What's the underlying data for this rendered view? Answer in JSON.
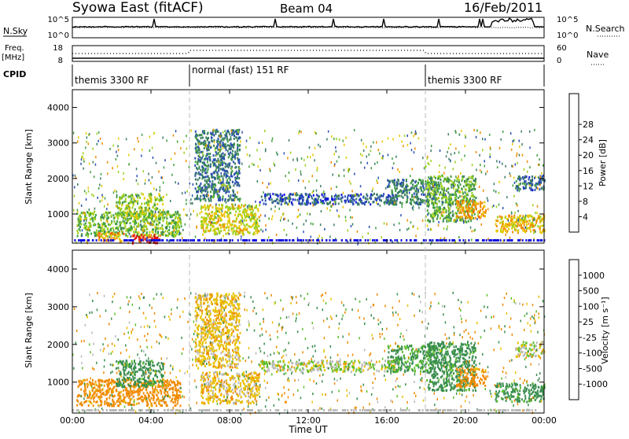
{
  "header": {
    "station": "Syowa East (fitACF)",
    "beam": "Beam 04",
    "date": "16/Feb/2011"
  },
  "aux_panels": {
    "nsky_label": "N.Sky",
    "nsky_ticks": [
      "10^5",
      "10^0"
    ],
    "nsearch_label": "N.Search",
    "nsearch_ticks": [
      "10^5",
      "10^0"
    ],
    "freq_label": "Freq.",
    "freq_unit": "[MHz]",
    "freq_ticks": [
      "18",
      "8"
    ],
    "nave_label": "Nave",
    "nave_ticks": [
      "60",
      "0"
    ],
    "cpid_label": "CPID"
  },
  "cpid_segments": [
    {
      "label": "themis 3300 RF",
      "start_hour": 0,
      "end_hour": 6
    },
    {
      "label": "normal (fast) 151 RF",
      "start_hour": 6,
      "end_hour": 18
    },
    {
      "label": "themis 3300 RF",
      "start_hour": 18,
      "end_hour": 24
    }
  ],
  "x_axis": {
    "label": "Time UT",
    "ticks": [
      "00:00",
      "04:00",
      "08:00",
      "12:00",
      "16:00",
      "20:00",
      "00:00"
    ],
    "range_hours": [
      0,
      24
    ]
  },
  "panels": [
    {
      "id": "power",
      "ylabel": "Slant Range [km]",
      "yticks": [
        "1000",
        "2000",
        "3000",
        "4000"
      ],
      "ylim": [
        180,
        4500
      ],
      "colorbar_label": "Power [dB]",
      "colorbar_ticks": [
        "4",
        "8",
        "12",
        "16",
        "20",
        "24",
        "28"
      ],
      "colors": [
        "#1010e0",
        "#2a4fb0",
        "#3b7d63",
        "#43a043",
        "#9bd01c",
        "#e8c800",
        "#f08c00",
        "#f05a00",
        "#e01010"
      ]
    },
    {
      "id": "velocity",
      "ylabel": "Slant Range [km]",
      "yticks": [
        "1000",
        "2000",
        "3000",
        "4000"
      ],
      "ylim": [
        180,
        4500
      ],
      "colorbar_label": "Velocity [m s⁻¹]",
      "colorbar_ticks": [
        "1000",
        "500",
        "100",
        "25",
        "-25",
        "-100",
        "-500",
        "-1000"
      ],
      "colors": [
        "#2a3fb5",
        "#2f6c9c",
        "#3a8e4f",
        "#5cbf2a",
        "#b8b8b8",
        "#e8c000",
        "#f08a00",
        "#f05000",
        "#e01010"
      ]
    }
  ],
  "chart_data": {
    "type": "heatmap",
    "title": "Syowa East (fitACF) Beam 04 16/Feb/2011",
    "xlabel": "Time UT",
    "ylabel": "Slant Range [km]",
    "x_range_hours": [
      0,
      24
    ],
    "y_range_km": [
      180,
      4500
    ],
    "power_regions_db": [
      {
        "t0": 0.2,
        "t1": 5.5,
        "r0": 400,
        "r1": 1100,
        "power": 14
      },
      {
        "t0": 2.2,
        "t1": 4.6,
        "r0": 900,
        "r1": 1600,
        "power": 16
      },
      {
        "t0": 3.0,
        "t1": 4.5,
        "r0": 200,
        "r1": 450,
        "power": 28
      },
      {
        "t0": 1.2,
        "t1": 2.6,
        "r0": 250,
        "r1": 500,
        "power": 22
      },
      {
        "t0": 6.5,
        "t1": 9.5,
        "r0": 450,
        "r1": 1300,
        "power": 18
      },
      {
        "t0": 6.2,
        "t1": 8.5,
        "r0": 1400,
        "r1": 3400,
        "power": 8
      },
      {
        "t0": 9.5,
        "t1": 16.5,
        "r0": 1300,
        "r1": 1600,
        "power": 6
      },
      {
        "t0": 16.0,
        "t1": 18.5,
        "r0": 1300,
        "r1": 2000,
        "power": 9
      },
      {
        "t0": 18.0,
        "t1": 20.5,
        "r0": 800,
        "r1": 2100,
        "power": 13
      },
      {
        "t0": 19.5,
        "t1": 21.0,
        "r0": 900,
        "r1": 1400,
        "power": 22
      },
      {
        "t0": 21.5,
        "t1": 24.0,
        "r0": 500,
        "r1": 1000,
        "power": 20
      },
      {
        "t0": 22.5,
        "t1": 24.0,
        "r0": 1700,
        "r1": 2100,
        "power": 7
      }
    ],
    "velocity_regions_ms": [
      {
        "t0": 0.2,
        "t1": 5.5,
        "r0": 400,
        "r1": 1100,
        "velocity": -150
      },
      {
        "t0": 2.2,
        "t1": 4.6,
        "r0": 900,
        "r1": 1600,
        "velocity": 150
      },
      {
        "t0": 6.5,
        "t1": 9.5,
        "r0": 450,
        "r1": 1300,
        "velocity": -60
      },
      {
        "t0": 6.2,
        "t1": 8.5,
        "r0": 1400,
        "r1": 3400,
        "velocity": -60
      },
      {
        "t0": 9.5,
        "t1": 16.5,
        "r0": 1300,
        "r1": 1600,
        "velocity": 0
      },
      {
        "t0": 16.0,
        "t1": 18.5,
        "r0": 1300,
        "r1": 2000,
        "velocity": 120
      },
      {
        "t0": 18.0,
        "t1": 20.5,
        "r0": 800,
        "r1": 2100,
        "velocity": 150
      },
      {
        "t0": 19.5,
        "t1": 21.0,
        "r0": 900,
        "r1": 1400,
        "velocity": -150
      },
      {
        "t0": 21.5,
        "t1": 24.0,
        "r0": 500,
        "r1": 1000,
        "velocity": 150
      },
      {
        "t0": 22.5,
        "t1": 24.0,
        "r0": 1700,
        "r1": 2100,
        "velocity": 0
      }
    ]
  }
}
